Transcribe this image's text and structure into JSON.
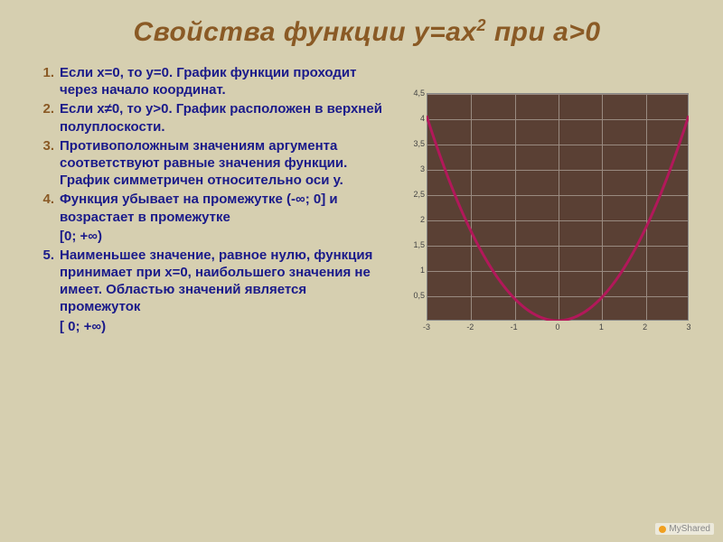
{
  "title_prefix": "Свойства функции у=ах",
  "title_exp": "2",
  "title_suffix": " при а>0",
  "items": [
    {
      "n": "1.",
      "text": "Если х=0, то у=0. График функции проходит через начало координат."
    },
    {
      "n": "2.",
      "text": "Если х≠0, то у>0. График расположен в верхней полуплоскости."
    },
    {
      "n": "3.",
      "text": "Противоположным значениям аргумента соответствуют равные значения функции. График симметричен относительно оси у."
    },
    {
      "n": "4.",
      "text": "Функция убывает на промежутке (-∞; 0] и возрастает в промежутке"
    },
    {
      "indent": "[0; +∞)"
    },
    {
      "n": "5.",
      "n_class": "num5",
      "text": "Наименьшее значение, равное нулю, функция принимает при х=0, наибольшего значения не имеет. Областью значений является промежуток"
    },
    {
      "indent": "[ 0; +∞)"
    }
  ],
  "chart": {
    "type": "line",
    "background_color": "#5a4034",
    "grid_color": "#998a80",
    "curve_color": "#b2185a",
    "curve_width": 3,
    "xlim": [
      -3,
      3
    ],
    "ylim": [
      0,
      4.5
    ],
    "xticks": [
      -3,
      -2,
      -1,
      0,
      1,
      2,
      3
    ],
    "yticks": [
      0.5,
      1,
      1.5,
      2,
      2.5,
      3,
      3.5,
      4,
      4.5
    ],
    "ytick_labels": [
      "0,5",
      "1",
      "1,5",
      "2",
      "2,5",
      "3",
      "3,5",
      "4",
      "4,5"
    ],
    "zero_label": "0",
    "series_x": [
      -3,
      -2.5,
      -2,
      -1.5,
      -1,
      -0.5,
      0,
      0.5,
      1,
      1.5,
      2,
      2.5,
      3
    ],
    "series_a": 0.45
  },
  "logo_text": "MyShared"
}
